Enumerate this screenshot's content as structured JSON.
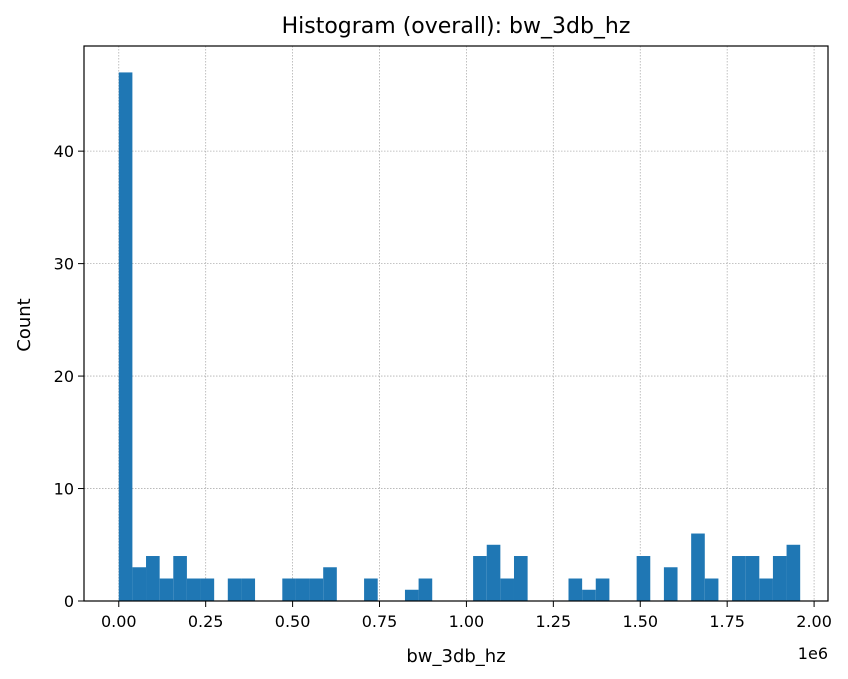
{
  "chart_data": {
    "type": "bar",
    "title": "Histogram (overall): bw_3db_hz",
    "xlabel": "bw_3db_hz",
    "ylabel": "Count",
    "x_multiplier_label": "1e6",
    "xlim": [
      -0.1,
      2.04
    ],
    "ylim": [
      0,
      49.35
    ],
    "grid": true,
    "bar_color": "#1f77b4",
    "x_ticks": [
      0.0,
      0.25,
      0.5,
      0.75,
      1.0,
      1.25,
      1.5,
      1.75,
      2.0
    ],
    "x_tick_labels": [
      "0.00",
      "0.25",
      "0.50",
      "0.75",
      "1.00",
      "1.25",
      "1.50",
      "1.75",
      "2.00"
    ],
    "y_ticks": [
      0,
      10,
      20,
      30,
      40
    ],
    "y_tick_labels": [
      "0",
      "10",
      "20",
      "30",
      "40"
    ],
    "bin_start": 0.0,
    "bin_width": 0.0392,
    "counts": [
      47,
      3,
      4,
      2,
      4,
      2,
      2,
      0,
      2,
      2,
      0,
      0,
      2,
      2,
      2,
      3,
      0,
      0,
      2,
      0,
      0,
      1,
      2,
      0,
      0,
      0,
      4,
      5,
      2,
      4,
      0,
      0,
      0,
      2,
      1,
      2,
      0,
      0,
      4,
      0,
      3,
      0,
      6,
      2,
      0,
      4,
      4,
      2,
      4,
      5
    ]
  }
}
